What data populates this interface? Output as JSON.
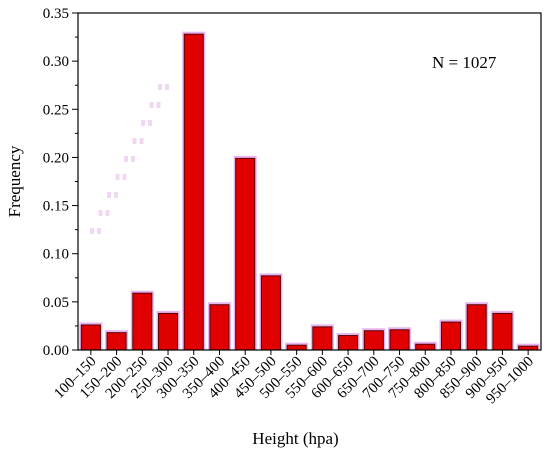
{
  "chart_data": {
    "type": "bar",
    "xlabel": "Height (hpa)",
    "ylabel": "Frequency",
    "ylim": [
      0,
      0.35
    ],
    "yticks": [
      "0.00",
      "0.05",
      "0.10",
      "0.15",
      "0.20",
      "0.25",
      "0.30",
      "0.35"
    ],
    "categories": [
      "100–150",
      "150–200",
      "200–250",
      "250–300",
      "300–350",
      "350–400",
      "400–450",
      "450–500",
      "500–550",
      "550–600",
      "600–650",
      "650–700",
      "700–750",
      "750–800",
      "800–850",
      "850–900",
      "900–950",
      "950–1000"
    ],
    "values": [
      0.026,
      0.018,
      0.059,
      0.038,
      0.328,
      0.047,
      0.199,
      0.077,
      0.005,
      0.024,
      0.015,
      0.02,
      0.021,
      0.006,
      0.029,
      0.047,
      0.038,
      0.004
    ],
    "annotation": "N = 1027",
    "bar_color": "#e00000",
    "bar_edge_color": "#5a0000",
    "bar_shadow_color": "#e8b4f0",
    "grid": false
  }
}
